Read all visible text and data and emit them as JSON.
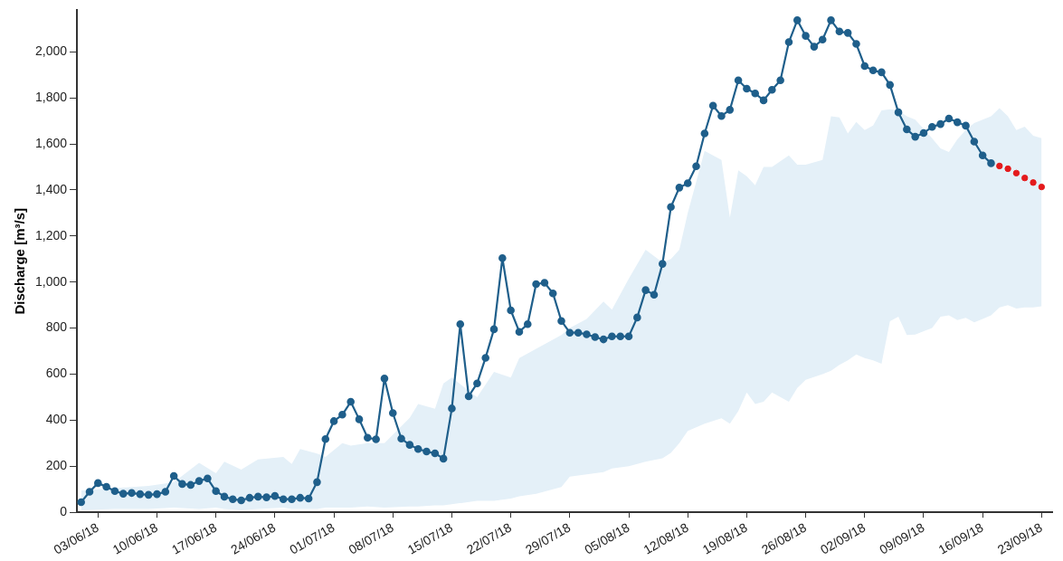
{
  "chart_data": {
    "type": "line",
    "ylabel": "Discharge [m³/s]",
    "xlim": [
      "--05-31T12:00",
      "--09-24T06:00"
    ],
    "xticks": [
      {
        "value": "--06-03",
        "label": "03/06/18"
      },
      {
        "value": "--06-10",
        "label": "10/06/18"
      },
      {
        "value": "--06-17",
        "label": "17/06/18"
      },
      {
        "value": "--06-24",
        "label": "24/06/18"
      },
      {
        "value": "--07-01",
        "label": "01/07/18"
      },
      {
        "value": "--07-08",
        "label": "08/07/18"
      },
      {
        "value": "--07-15",
        "label": "15/07/18"
      },
      {
        "value": "--07-22",
        "label": "22/07/18"
      },
      {
        "value": "--07-29",
        "label": "29/07/18"
      },
      {
        "value": "--08-05",
        "label": "05/08/18"
      },
      {
        "value": "--08-12",
        "label": "12/08/18"
      },
      {
        "value": "--08-19",
        "label": "19/08/18"
      },
      {
        "value": "--08-26",
        "label": "26/08/18"
      },
      {
        "value": "--09-02",
        "label": "02/09/18"
      },
      {
        "value": "--09-09",
        "label": "09/09/18"
      },
      {
        "value": "--09-16",
        "label": "16/09/18"
      },
      {
        "value": "--09-23",
        "label": "23/09/18"
      }
    ],
    "ylim": [
      0,
      2180
    ],
    "yticks": [
      0,
      200,
      400,
      600,
      800,
      {
        "value": 1000,
        "label": "1,000"
      },
      {
        "value": 1200,
        "label": "1,200"
      },
      {
        "value": 1400,
        "label": "1,400"
      },
      {
        "value": 1600,
        "label": "1,600"
      },
      {
        "value": 1800,
        "label": "1,800"
      },
      {
        "value": 2000,
        "label": "2,000"
      }
    ],
    "marker": "circle",
    "series": [
      {
        "type": "area",
        "color": "#e4f0f8",
        "x": [
          "--06-01",
          "--06-05",
          "--06-09",
          "--06-12",
          "--06-15",
          "--06-17",
          "--06-18",
          "--06-20",
          "--06-22",
          "--06-25",
          "--06-26",
          "--06-27",
          "--06-29",
          "--06-30",
          "--07-02",
          "--07-03",
          "--07-05",
          "--07-07",
          "--07-10",
          "--07-11",
          "--07-13",
          "--07-14",
          "--07-15",
          "--07-18",
          "--07-20",
          "--07-22",
          "--07-23",
          "--07-25",
          "--07-28",
          "--07-29",
          "--07-31",
          "--08-02",
          "--08-03",
          "--08-05",
          "--08-07",
          "--08-09",
          "--08-10",
          "--08-11",
          "--08-12",
          "--08-14",
          "--08-16",
          "--08-17",
          "--08-18",
          "--08-19",
          "--08-20",
          "--08-21",
          "--08-22",
          "--08-24",
          "--08-25",
          "--08-26",
          "--08-28",
          "--08-29",
          "--08-30",
          "--08-31",
          "--09-01",
          "--09-02",
          "--09-03",
          "--09-04",
          "--09-05",
          "--09-06",
          "--09-07",
          "--09-08",
          "--09-10",
          "--09-11",
          "--09-12",
          "--09-13",
          "--09-14",
          "--09-15",
          "--09-16",
          "--09-17",
          "--09-18",
          "--09-19",
          "--09-20",
          "--09-21",
          "--09-22",
          "--09-23"
        ],
        "values": [
          null,
          null,
          null,
          null,
          null,
          null,
          null,
          null,
          null,
          null,
          null,
          null,
          null,
          null,
          null,
          null,
          null,
          null,
          null,
          null,
          null,
          null,
          null,
          null,
          null,
          null,
          null,
          null,
          null,
          null,
          null,
          null,
          null,
          null,
          null,
          null,
          null,
          null,
          null,
          null,
          null,
          null,
          null,
          null,
          null,
          null,
          null,
          null,
          null,
          null,
          null,
          null,
          null,
          null,
          null,
          null,
          null,
          null,
          null,
          null,
          null,
          null,
          null,
          null,
          null,
          null,
          null,
          null,
          null,
          null,
          null,
          null,
          null,
          null,
          null,
          null
        ],
        "lower": [
          10,
          15,
          15,
          20,
          15,
          20,
          15,
          10,
          15,
          20,
          15,
          15,
          15,
          20,
          20,
          20,
          25,
          20,
          25,
          25,
          30,
          30,
          35,
          50,
          50,
          60,
          70,
          80,
          110,
          155,
          165,
          175,
          190,
          200,
          220,
          235,
          258,
          300,
          353,
          385,
          408,
          385,
          440,
          520,
          470,
          480,
          520,
          480,
          540,
          575,
          600,
          615,
          640,
          660,
          685,
          670,
          660,
          645,
          830,
          850,
          770,
          772,
          800,
          850,
          855,
          835,
          845,
          825,
          840,
          855,
          890,
          900,
          885,
          890,
          890,
          895
        ],
        "upper": [
          95,
          105,
          115,
          130,
          215,
          170,
          220,
          185,
          230,
          240,
          210,
          275,
          255,
          240,
          300,
          290,
          300,
          300,
          410,
          470,
          450,
          560,
          585,
          500,
          610,
          585,
          670,
          710,
          770,
          800,
          840,
          915,
          880,
          1015,
          1140,
          1085,
          1100,
          1140,
          1300,
          1570,
          1530,
          1280,
          1485,
          1460,
          1420,
          1500,
          1500,
          1550,
          1510,
          1510,
          1530,
          1720,
          1715,
          1645,
          1695,
          1660,
          1680,
          1745,
          1750,
          1745,
          1720,
          1705,
          1625,
          1580,
          1565,
          1620,
          1660,
          1690,
          1705,
          1720,
          1755,
          1720,
          1660,
          1675,
          1635,
          1625
        ]
      },
      {
        "color": "#1f5f8b",
        "x": [
          "--06-01",
          "--06-02",
          "--06-03",
          "--06-04",
          "--06-05",
          "--06-06",
          "--06-07",
          "--06-08",
          "--06-09",
          "--06-10",
          "--06-11",
          "--06-12",
          "--06-13",
          "--06-14",
          "--06-15",
          "--06-16",
          "--06-17",
          "--06-18",
          "--06-19",
          "--06-20",
          "--06-21",
          "--06-22",
          "--06-23",
          "--06-24",
          "--06-25",
          "--06-26",
          "--06-27",
          "--06-28",
          "--06-29",
          "--06-30",
          "--07-01",
          "--07-02",
          "--07-03",
          "--07-04",
          "--07-05",
          "--07-06",
          "--07-07",
          "--07-08",
          "--07-09",
          "--07-10",
          "--07-11",
          "--07-12",
          "--07-13",
          "--07-14",
          "--07-15",
          "--07-16",
          "--07-17",
          "--07-18",
          "--07-19",
          "--07-20",
          "--07-21",
          "--07-22",
          "--07-23",
          "--07-24",
          "--07-25",
          "--07-26",
          "--07-27",
          "--07-28",
          "--07-29",
          "--07-30",
          "--07-31",
          "--08-01",
          "--08-02",
          "--08-03",
          "--08-04",
          "--08-05",
          "--08-06",
          "--08-07",
          "--08-08",
          "--08-09",
          "--08-10",
          "--08-11",
          "--08-12",
          "--08-13",
          "--08-14",
          "--08-15",
          "--08-16",
          "--08-17",
          "--08-18",
          "--08-19",
          "--08-20",
          "--08-21",
          "--08-22",
          "--08-23",
          "--08-24",
          "--08-25",
          "--08-26",
          "--08-27",
          "--08-28",
          "--08-29",
          "--08-30",
          "--08-31",
          "--09-01",
          "--09-02",
          "--09-03",
          "--09-04",
          "--09-05",
          "--09-06",
          "--09-07",
          "--09-08",
          "--09-09",
          "--09-10",
          "--09-11",
          "--09-12",
          "--09-13",
          "--09-14",
          "--09-15",
          "--09-16",
          "--09-17"
        ],
        "values": [
          44,
          89,
          127,
          111,
          92,
          81,
          84,
          79,
          76,
          79,
          89,
          158,
          123,
          119,
          136,
          147,
          92,
          68,
          57,
          52,
          63,
          68,
          65,
          71,
          57,
          57,
          63,
          60,
          131,
          318,
          396,
          424,
          480,
          404,
          324,
          317,
          581,
          431,
          320,
          293,
          275,
          264,
          256,
          233,
          451,
          817,
          504,
          560,
          671,
          795,
          1104,
          877,
          784,
          817,
          991,
          997,
          951,
          831,
          780,
          780,
          773,
          761,
          751,
          764,
          764,
          764,
          846,
          965,
          945,
          1079,
          1326,
          1410,
          1429,
          1503,
          1645,
          1766,
          1721,
          1748,
          1876,
          1840,
          1819,
          1789,
          1835,
          1876,
          2042,
          2137,
          2069,
          2022,
          2053,
          2137,
          2088,
          2082,
          2034,
          1938,
          1919,
          1911,
          1856,
          1737,
          1663,
          1631,
          1647,
          1674,
          1686,
          1710,
          1694,
          1679,
          1610,
          1550,
          1516
        ]
      },
      {
        "type": "scatter",
        "color": "#e41a1c",
        "x": [
          "--09-18",
          "--09-19",
          "--09-20",
          "--09-21",
          "--09-22",
          "--09-23"
        ],
        "values": [
          1504,
          1492,
          1473,
          1452,
          1432,
          1413
        ]
      }
    ]
  }
}
